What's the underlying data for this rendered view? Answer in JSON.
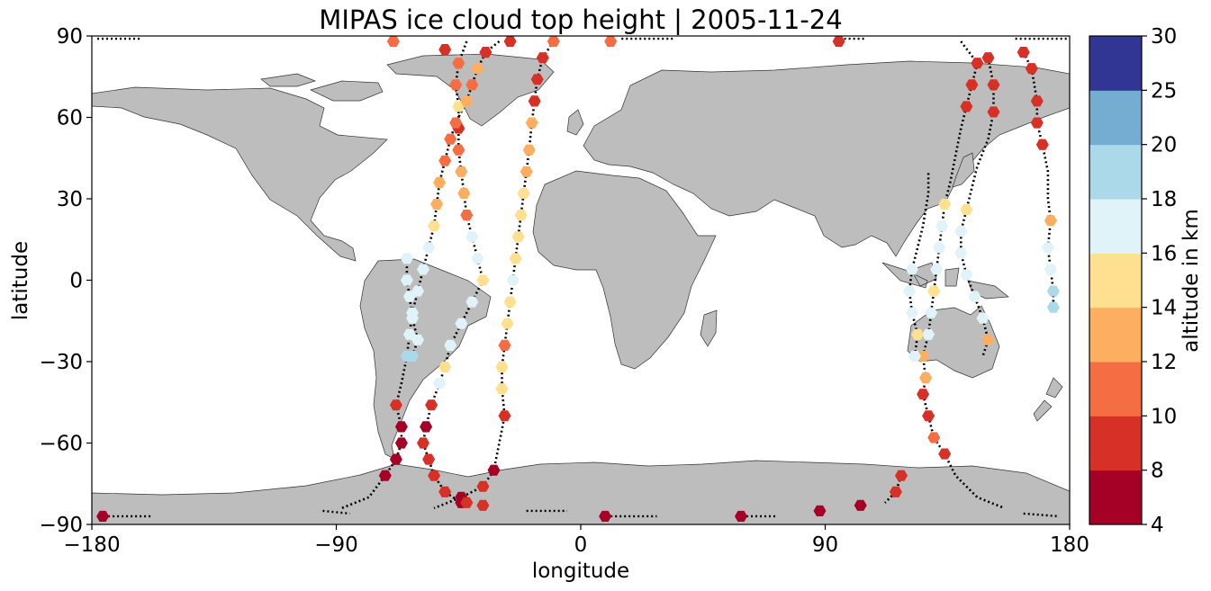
{
  "chart_data": {
    "type": "scatter",
    "title": "MIPAS ice cloud top height | 2005-11-24",
    "xlabel": "longitude",
    "ylabel": "latitude",
    "xlim": [
      -180,
      180
    ],
    "ylim": [
      -90,
      90
    ],
    "xticks": [
      "−180",
      "−90",
      "0",
      "90",
      "180"
    ],
    "yticks": [
      "90",
      "60",
      "30",
      "0",
      "−30",
      "−60",
      "−90"
    ],
    "colorbar": {
      "label": "altitude in km",
      "ticks": [
        "4",
        "8",
        "10",
        "12",
        "14",
        "16",
        "18",
        "20",
        "25",
        "30"
      ],
      "bins": [
        {
          "from": 4,
          "to": 8,
          "color": "#a50026"
        },
        {
          "from": 8,
          "to": 10,
          "color": "#d73027"
        },
        {
          "from": 10,
          "to": 12,
          "color": "#f46d43"
        },
        {
          "from": 12,
          "to": 14,
          "color": "#fdae61"
        },
        {
          "from": 14,
          "to": 16,
          "color": "#fee090"
        },
        {
          "from": 16,
          "to": 18,
          "color": "#e0f3f8"
        },
        {
          "from": 18,
          "to": 20,
          "color": "#abd9e9"
        },
        {
          "from": 20,
          "to": 25,
          "color": "#74add1"
        },
        {
          "from": 25,
          "to": 30,
          "color": "#313695"
        }
      ]
    },
    "tracks": [
      {
        "name": "track 1",
        "points": [
          [
            -10,
            88,
            11
          ],
          [
            -14,
            82,
            9
          ],
          [
            -16,
            74,
            8
          ],
          [
            -17,
            66,
            8
          ],
          [
            -18,
            58,
            12
          ],
          [
            -19,
            48,
            13
          ],
          [
            -20,
            40,
            13
          ],
          [
            -21,
            32,
            14
          ],
          [
            -22,
            24,
            15
          ],
          [
            -23,
            16,
            15
          ],
          [
            -24,
            8,
            15
          ],
          [
            -25,
            0,
            16
          ],
          [
            -26,
            -8,
            15
          ],
          [
            -27,
            -16,
            15
          ],
          [
            -28,
            -24,
            11
          ],
          [
            -29,
            -32,
            15
          ],
          [
            -29,
            -40,
            14
          ],
          [
            -28,
            -50,
            9
          ],
          [
            -30,
            -60,
            null
          ],
          [
            -32,
            -70,
            7
          ],
          [
            -36,
            -76,
            8
          ],
          [
            -44,
            -80,
            7
          ],
          [
            -54,
            -84,
            null
          ]
        ]
      },
      {
        "name": "track 2",
        "points": [
          [
            -42,
            88,
            null
          ],
          [
            -45,
            80,
            11
          ],
          [
            -46,
            72,
            11
          ],
          [
            -45,
            64,
            14
          ],
          [
            -45,
            56,
            9
          ],
          [
            -45,
            48,
            11
          ],
          [
            -44,
            40,
            12
          ],
          [
            -43,
            32,
            12
          ],
          [
            -42,
            24,
            10
          ],
          [
            -40,
            16,
            16
          ],
          [
            -38,
            8,
            16
          ],
          [
            -36,
            0,
            15
          ],
          [
            -40,
            -8,
            16
          ],
          [
            -44,
            -16,
            16
          ],
          [
            -48,
            -24,
            16
          ],
          [
            -50,
            -32,
            15
          ],
          [
            -52,
            -38,
            16
          ],
          [
            -55,
            -46,
            8
          ],
          [
            -57,
            -54,
            7
          ],
          [
            -58,
            -60,
            8
          ],
          [
            -56,
            -66,
            9
          ],
          [
            -54,
            -72,
            8
          ],
          [
            -50,
            -78,
            8
          ],
          [
            -44,
            -82,
            7
          ]
        ]
      },
      {
        "name": "track 3",
        "points": [
          [
            -30,
            88,
            null
          ],
          [
            -35,
            84,
            8
          ],
          [
            -38,
            78,
            12
          ],
          [
            -40,
            72,
            11
          ],
          [
            -42,
            66,
            12
          ],
          [
            -46,
            58,
            11
          ],
          [
            -48,
            52,
            10
          ],
          [
            -50,
            44,
            11
          ],
          [
            -52,
            36,
            13
          ],
          [
            -53,
            28,
            13
          ],
          [
            -54,
            20,
            15
          ],
          [
            -56,
            12,
            16
          ],
          [
            -58,
            4,
            16
          ],
          [
            -60,
            -4,
            16
          ],
          [
            -62,
            -12,
            16
          ],
          [
            -63,
            -20,
            16
          ],
          [
            -64,
            -28,
            19
          ],
          [
            -66,
            -38,
            null
          ],
          [
            -68,
            -46,
            8
          ],
          [
            -66,
            -54,
            7
          ],
          [
            -66,
            -60,
            7
          ],
          [
            -68,
            -66,
            7
          ],
          [
            -72,
            -72,
            7
          ],
          [
            -78,
            -80,
            null
          ],
          [
            -88,
            -84,
            null
          ]
        ]
      },
      {
        "name": "track 4",
        "points": [
          [
            -62,
            -28,
            19
          ],
          [
            -60,
            -22,
            16
          ],
          [
            -62,
            -14,
            16
          ],
          [
            -63,
            -6,
            16
          ],
          [
            -64,
            0,
            16
          ],
          [
            -64,
            8,
            16
          ]
        ]
      },
      {
        "name": "track 5",
        "points": [
          [
            150,
            82,
            8
          ],
          [
            152,
            72,
            8
          ],
          [
            152,
            62,
            8
          ],
          [
            150,
            52,
            null
          ],
          [
            146,
            42,
            null
          ],
          [
            144,
            34,
            null
          ],
          [
            142,
            26,
            15
          ],
          [
            140,
            18,
            16
          ],
          [
            140,
            10,
            16
          ],
          [
            142,
            2,
            16
          ],
          [
            145,
            -6,
            16
          ],
          [
            148,
            -14,
            16
          ],
          [
            150,
            -22,
            13
          ],
          [
            148,
            -28,
            null
          ]
        ]
      },
      {
        "name": "track 6",
        "points": [
          [
            140,
            88,
            null
          ],
          [
            146,
            80,
            8
          ],
          [
            144,
            72,
            9
          ],
          [
            142,
            64,
            8
          ],
          [
            140,
            56,
            null
          ],
          [
            138,
            46,
            null
          ],
          [
            136,
            36,
            null
          ],
          [
            134,
            28,
            15
          ],
          [
            133,
            20,
            16
          ],
          [
            132,
            12,
            16
          ],
          [
            131,
            4,
            16
          ],
          [
            130,
            -4,
            15
          ],
          [
            129,
            -12,
            16
          ],
          [
            128,
            -20,
            16
          ],
          [
            126,
            -28,
            13
          ],
          [
            127,
            -36,
            12
          ],
          [
            126,
            -42,
            9
          ],
          [
            128,
            -50,
            9
          ],
          [
            130,
            -58,
            10
          ],
          [
            134,
            -64,
            8
          ],
          [
            138,
            -72,
            null
          ],
          [
            146,
            -80,
            null
          ],
          [
            156,
            -84,
            null
          ]
        ]
      },
      {
        "name": "track 7",
        "points": [
          [
            123,
            -28,
            16
          ],
          [
            124,
            -20,
            14
          ],
          [
            122,
            -12,
            16
          ],
          [
            121,
            -4,
            16
          ],
          [
            122,
            4,
            16
          ],
          [
            124,
            12,
            null
          ],
          [
            126,
            20,
            null
          ],
          [
            128,
            32,
            null
          ],
          [
            128,
            40,
            null
          ]
        ]
      },
      {
        "name": "track 8",
        "points": [
          [
            118,
            -72,
            9
          ],
          [
            116,
            -78,
            9
          ],
          [
            112,
            -82,
            null
          ]
        ]
      },
      {
        "name": "track 9",
        "points": [
          [
            163,
            84,
            8
          ],
          [
            166,
            78,
            8
          ],
          [
            168,
            66,
            9
          ],
          [
            168,
            58,
            9
          ],
          [
            170,
            50,
            8
          ],
          [
            172,
            40,
            null
          ],
          [
            172,
            30,
            null
          ],
          [
            173,
            22,
            12
          ],
          [
            172,
            12,
            16
          ],
          [
            173,
            4,
            17
          ],
          [
            174,
            -4,
            19
          ],
          [
            174,
            -10,
            19
          ]
        ]
      }
    ],
    "single_points": [
      [
        -69,
        88,
        11
      ],
      [
        -50,
        85,
        8
      ],
      [
        -26,
        88,
        8
      ],
      [
        11,
        88,
        11
      ],
      [
        95,
        88,
        8
      ],
      [
        -176,
        -87,
        7
      ],
      [
        9,
        -87,
        7
      ],
      [
        59,
        -87,
        7
      ],
      [
        88,
        -85,
        7
      ],
      [
        103,
        -83,
        7
      ],
      [
        -36,
        -83,
        8
      ],
      [
        -42,
        -82,
        8
      ]
    ],
    "dot_trails": [
      [
        -178,
        89,
        -162,
        89
      ],
      [
        15,
        89,
        34,
        89
      ],
      [
        97,
        89,
        105,
        89
      ],
      [
        160,
        89,
        180,
        89
      ],
      [
        -174,
        -87,
        -158,
        -87
      ],
      [
        11,
        -87,
        28,
        -87
      ],
      [
        61,
        -87,
        72,
        -87
      ],
      [
        -20,
        -85,
        -5,
        -85
      ],
      [
        -95,
        -85,
        -85,
        -86
      ],
      [
        163,
        -86,
        176,
        -87
      ]
    ]
  }
}
